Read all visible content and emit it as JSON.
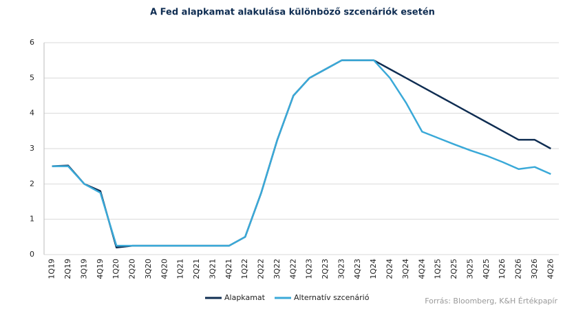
{
  "chart_data": {
    "type": "line",
    "title": "A Fed  alapkamat alakulása különböző szcenáriók esetén",
    "source": "Forrás: Bloomberg,  K&H Értékpapír",
    "categories": [
      "1Q19",
      "2Q19",
      "3Q19",
      "4Q19",
      "1Q20",
      "2Q20",
      "3Q20",
      "4Q20",
      "1Q21",
      "2Q21",
      "3Q21",
      "4Q21",
      "1Q22",
      "2Q22",
      "3Q22",
      "4Q22",
      "1Q23",
      "2Q23",
      "3Q23",
      "4Q23",
      "1Q24",
      "2Q24",
      "3Q24",
      "4Q24",
      "1Q25",
      "2Q25",
      "3Q25",
      "4Q25",
      "1Q26",
      "2Q26",
      "3Q26",
      "4Q26"
    ],
    "series": [
      {
        "name": "Alapkamat",
        "color": "#0f2d52",
        "values": [
          2.5,
          2.52,
          2.0,
          1.8,
          0.2,
          0.25,
          0.25,
          0.25,
          0.25,
          0.25,
          0.25,
          0.25,
          0.5,
          1.75,
          3.25,
          4.5,
          5.0,
          5.25,
          5.5,
          5.5,
          5.5,
          5.25,
          5.0,
          4.75,
          4.5,
          4.25,
          4.0,
          3.75,
          3.5,
          3.25,
          3.25,
          3.0
        ]
      },
      {
        "name": "Alternatív szcenárió",
        "color": "#3aa9d8",
        "values": [
          2.5,
          2.5,
          2.0,
          1.75,
          0.25,
          0.25,
          0.25,
          0.25,
          0.25,
          0.25,
          0.25,
          0.25,
          0.5,
          1.75,
          3.25,
          4.5,
          5.0,
          5.25,
          5.5,
          5.5,
          5.5,
          5.0,
          4.3,
          3.48,
          3.3,
          3.12,
          2.95,
          2.8,
          2.62,
          2.42,
          2.48,
          2.28
        ]
      }
    ],
    "ylim": [
      0,
      6
    ],
    "yticks": [
      0,
      1,
      2,
      3,
      4,
      5,
      6
    ],
    "grid": true,
    "legend": "bottom"
  }
}
